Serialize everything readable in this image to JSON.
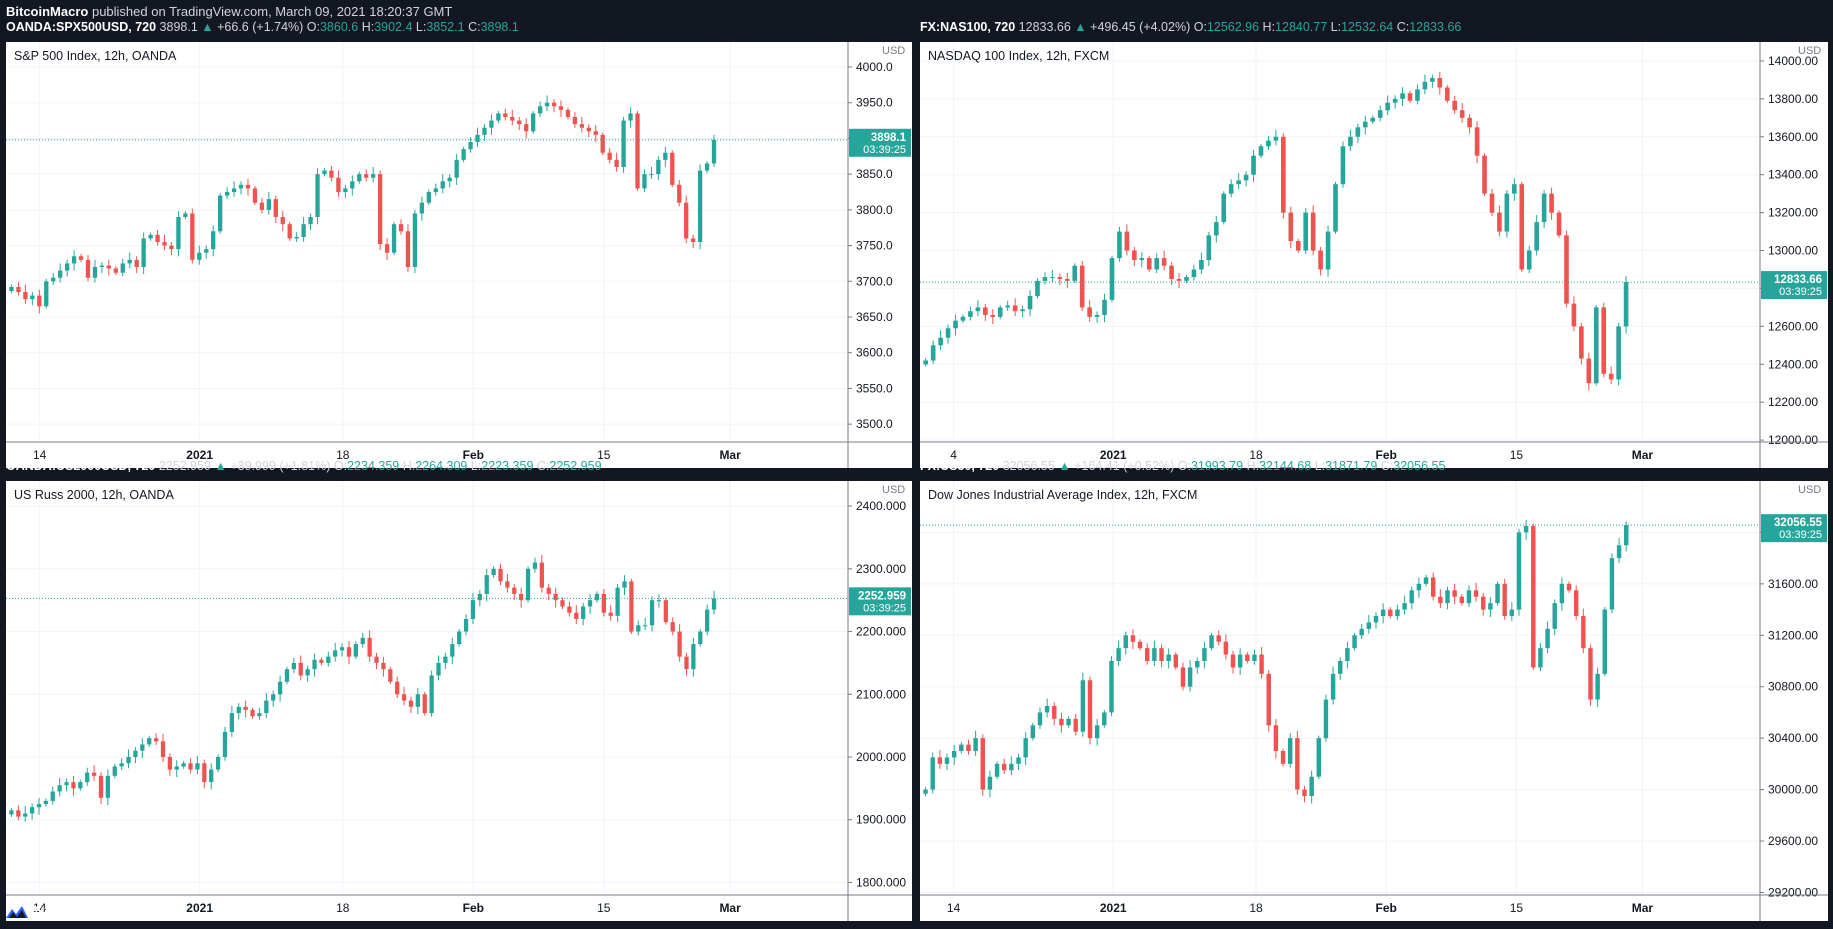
{
  "publish": {
    "author": "BitcoinMacro",
    "text": "published on TradingView.com, March 09, 2021 18:20:37 GMT"
  },
  "footer": {
    "brand": "TradingView",
    "icon": "tradingview-logo-icon"
  },
  "colors": {
    "up": "#26a69a",
    "down": "#ef5350",
    "background": "#131722",
    "plot": "#ffffff",
    "grid": "#eef0f3"
  },
  "panels": [
    {
      "header": {
        "symbol": "OANDA:SPX500USD, 720",
        "last": "3898.1",
        "change": "+66.6 (+1.74%)",
        "o_label": "O:",
        "o": "3860.6",
        "h_label": "H:",
        "h": "3902.4",
        "l_label": "L:",
        "l": "3852.1",
        "c_label": "C:",
        "c": "3898.1"
      },
      "title": "S&P 500 Index, 12h, OANDA",
      "currency": "USD",
      "y_ticks": [
        "4000.0",
        "3950.0",
        "3900.0",
        "3850.0",
        "3800.0",
        "3750.0",
        "3700.0",
        "3650.0",
        "3600.0",
        "3550.0",
        "3500.0"
      ],
      "x_ticks": [
        "14",
        "2021",
        "18",
        "Feb",
        "15",
        "Mar",
        "15"
      ],
      "price_label": "3898.1",
      "countdown": "03:39:25",
      "chart_data": {
        "type": "candlestick",
        "ylim": [
          3475,
          4035
        ],
        "last": 3898.1,
        "values": [
          3692,
          3685,
          3675,
          3680,
          3665,
          3700,
          3705,
          3715,
          3725,
          3735,
          3730,
          3705,
          3720,
          3722,
          3718,
          3712,
          3725,
          3730,
          3720,
          3760,
          3765,
          3755,
          3750,
          3745,
          3790,
          3795,
          3730,
          3740,
          3745,
          3770,
          3820,
          3825,
          3830,
          3835,
          3830,
          3810,
          3800,
          3815,
          3790,
          3780,
          3760,
          3762,
          3780,
          3790,
          3850,
          3855,
          3845,
          3825,
          3830,
          3840,
          3850,
          3845,
          3850,
          3752,
          3740,
          3780,
          3770,
          3720,
          3795,
          3810,
          3825,
          3830,
          3840,
          3845,
          3870,
          3885,
          3895,
          3905,
          3915,
          3925,
          3935,
          3930,
          3925,
          3920,
          3910,
          3935,
          3945,
          3950,
          3945,
          3940,
          3930,
          3920,
          3915,
          3910,
          3905,
          3880,
          3870,
          3860,
          3925,
          3935,
          3830,
          3850,
          3850,
          3870,
          3880,
          3835,
          3810,
          3760,
          3755,
          3855,
          3865,
          3898.1
        ]
      }
    },
    {
      "header": {
        "symbol": "FX:NAS100, 720",
        "last": "12833.66",
        "change": "+496.45 (+4.02%)",
        "o_label": "O:",
        "o": "12562.96",
        "h_label": "H:",
        "h": "12840.77",
        "l_label": "L:",
        "l": "12532.64",
        "c_label": "C:",
        "c": "12833.66"
      },
      "title": "NASDAQ 100 Index, 12h, FXCM",
      "currency": "USD",
      "y_ticks": [
        "14000.00",
        "13800.00",
        "13600.00",
        "13400.00",
        "13200.00",
        "13000.00",
        "12800.00",
        "12600.00",
        "12400.00",
        "12200.00",
        "12000.00"
      ],
      "x_ticks": [
        "4",
        "2021",
        "18",
        "Feb",
        "15",
        "Mar",
        "15"
      ],
      "price_label": "12833.66",
      "countdown": "03:39:25",
      "chart_data": {
        "type": "candlestick",
        "ylim": [
          11990,
          14100
        ],
        "last": 12833.66,
        "values": [
          12420,
          12500,
          12540,
          12590,
          12630,
          12650,
          12680,
          12700,
          12660,
          12650,
          12700,
          12710,
          12680,
          12690,
          12760,
          12840,
          12860,
          12860,
          12850,
          12840,
          12920,
          12700,
          12650,
          12660,
          12740,
          12960,
          13100,
          13000,
          12950,
          12960,
          12900,
          12960,
          12920,
          12850,
          12840,
          12860,
          12900,
          12950,
          13080,
          13150,
          13300,
          13350,
          13370,
          13400,
          13500,
          13550,
          13580,
          13600,
          13200,
          13050,
          13000,
          13200,
          13000,
          12900,
          13100,
          13350,
          13550,
          13600,
          13650,
          13680,
          13700,
          13740,
          13780,
          13800,
          13830,
          13790,
          13850,
          13890,
          13910,
          13860,
          13790,
          13740,
          13700,
          13650,
          13500,
          13300,
          13200,
          13100,
          13300,
          13350,
          12900,
          13000,
          13150,
          13300,
          13200,
          13080,
          12720,
          12600,
          12430,
          12300,
          12700,
          12350,
          12320,
          12600,
          12833.66
        ]
      }
    },
    {
      "header": {
        "symbol": "OANDA:US2000USD, 720",
        "last": "2252.959",
        "change": "+39.999 (+1.81%)",
        "o_label": "O:",
        "o": "2234.359",
        "h_label": "H:",
        "h": "2264.309",
        "l_label": "L:",
        "l": "2223.359",
        "c_label": "C:",
        "c": "2252.959"
      },
      "title": "US Russ 2000, 12h, OANDA",
      "currency": "USD",
      "y_ticks": [
        "2400.000",
        "2300.000",
        "2200.000",
        "2100.000",
        "2000.000",
        "1900.000",
        "1800.000"
      ],
      "x_ticks": [
        "14",
        "2021",
        "18",
        "Feb",
        "15",
        "Mar",
        "15"
      ],
      "price_label": "2252.959",
      "countdown": "03:39:25",
      "chart_data": {
        "type": "candlestick",
        "ylim": [
          1780,
          2440
        ],
        "last": 2252.959,
        "values": [
          1915,
          1905,
          1910,
          1920,
          1925,
          1930,
          1945,
          1955,
          1960,
          1950,
          1960,
          1975,
          1970,
          1935,
          1970,
          1985,
          1990,
          2000,
          2010,
          2020,
          2030,
          2025,
          2000,
          1980,
          1985,
          1990,
          1980,
          1990,
          1960,
          1980,
          2000,
          2040,
          2070,
          2080,
          2075,
          2065,
          2070,
          2090,
          2100,
          2120,
          2140,
          2150,
          2130,
          2140,
          2155,
          2150,
          2160,
          2170,
          2175,
          2160,
          2180,
          2190,
          2160,
          2150,
          2140,
          2120,
          2100,
          2090,
          2080,
          2100,
          2070,
          2130,
          2150,
          2160,
          2180,
          2200,
          2220,
          2250,
          2260,
          2290,
          2300,
          2280,
          2270,
          2260,
          2250,
          2300,
          2310,
          2270,
          2260,
          2250,
          2240,
          2230,
          2220,
          2240,
          2250,
          2260,
          2230,
          2225,
          2270,
          2280,
          2200,
          2210,
          2210,
          2250,
          2250,
          2215,
          2200,
          2160,
          2140,
          2180,
          2200,
          2235,
          2252.959
        ]
      }
    },
    {
      "header": {
        "symbol": "FX:US30, 720",
        "last": "32056.55",
        "change": "+164.41 (+0.52%)",
        "o_label": "O:",
        "o": "31993.79",
        "h_label": "H:",
        "h": "32144.68",
        "l_label": "L:",
        "l": "31871.79",
        "c_label": "C:",
        "c": "32056.55"
      },
      "title": "Dow Jones Industrial Average Index, 12h, FXCM",
      "currency": "USD",
      "y_ticks": [
        "32000.00",
        "31600.00",
        "31200.00",
        "30800.00",
        "30400.00",
        "30000.00",
        "29600.00",
        "29200.00"
      ],
      "x_ticks": [
        "14",
        "2021",
        "18",
        "Feb",
        "15",
        "Mar",
        "15"
      ],
      "price_label": "32056.55",
      "countdown": "03:39:25",
      "chart_data": {
        "type": "candlestick",
        "ylim": [
          29180,
          32400
        ],
        "last": 32056.55,
        "values": [
          30000,
          30250,
          30200,
          30250,
          30300,
          30350,
          30300,
          30400,
          30000,
          30100,
          30200,
          30150,
          30200,
          30250,
          30400,
          30500,
          30600,
          30650,
          30550,
          30500,
          30550,
          30450,
          30850,
          30400,
          30500,
          30600,
          31000,
          31100,
          31200,
          31150,
          31100,
          31000,
          31100,
          31000,
          31050,
          30950,
          30800,
          30950,
          31000,
          31100,
          31200,
          31150,
          31050,
          30950,
          31050,
          31000,
          31050,
          30900,
          30500,
          30300,
          30200,
          30400,
          30000,
          29950,
          30100,
          30400,
          30700,
          30900,
          31000,
          31100,
          31200,
          31250,
          31300,
          31350,
          31400,
          31350,
          31400,
          31450,
          31550,
          31600,
          31650,
          31500,
          31450,
          31550,
          31500,
          31450,
          31550,
          31500,
          31400,
          31450,
          31600,
          31350,
          31400,
          32000,
          32050,
          30950,
          31100,
          31250,
          31450,
          31600,
          31550,
          31350,
          31100,
          30700,
          30900,
          31400,
          31800,
          31900,
          32056.55
        ]
      }
    }
  ]
}
